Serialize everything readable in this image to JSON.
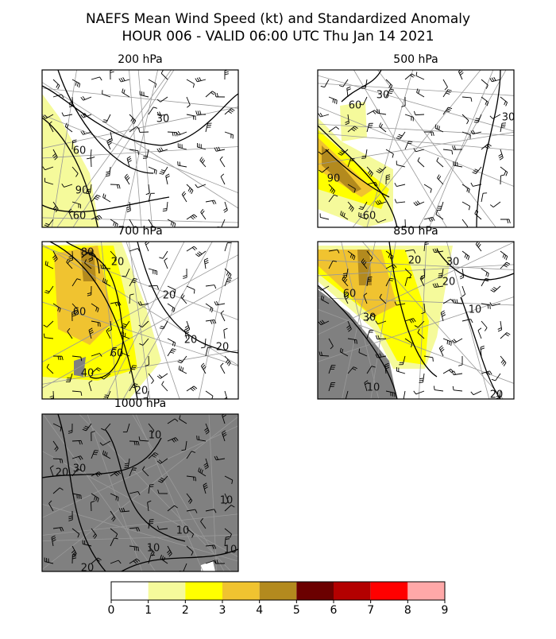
{
  "header": {
    "title": [
      "NAEFS Mean Wind Speed (kt) and Standardized Anomaly",
      "HOUR 006 - VALID 06:00 UTC Thu Jan 14 2021"
    ]
  },
  "panels": [
    {
      "title": "200 hPa",
      "contour_labels": [
        "30",
        "60",
        "90",
        "60"
      ]
    },
    {
      "title": "500 hPa",
      "contour_labels": [
        "60",
        "30",
        "30",
        "90",
        "60"
      ]
    },
    {
      "title": "700 hPa",
      "contour_labels": [
        "80",
        "20",
        "60",
        "20",
        "20",
        "60",
        "20",
        "20",
        "40"
      ]
    },
    {
      "title": "850 hPa",
      "contour_labels": [
        "20",
        "30",
        "20",
        "60",
        "30",
        "10",
        "10",
        "20"
      ]
    },
    {
      "title": "1000 hPa",
      "contour_labels": [
        "10",
        "30",
        "20",
        "10",
        "10",
        "10",
        "10",
        "20"
      ]
    }
  ],
  "colorbar": {
    "ticks": [
      0,
      1,
      2,
      3,
      4,
      5,
      6,
      7,
      8,
      9
    ],
    "colors": [
      "#ffffff",
      "#f5fa9b",
      "#ffff00",
      "#f0c330",
      "#b38a1e",
      "#6b0000",
      "#b30000",
      "#ff0000",
      "#ffa8a8"
    ]
  }
}
